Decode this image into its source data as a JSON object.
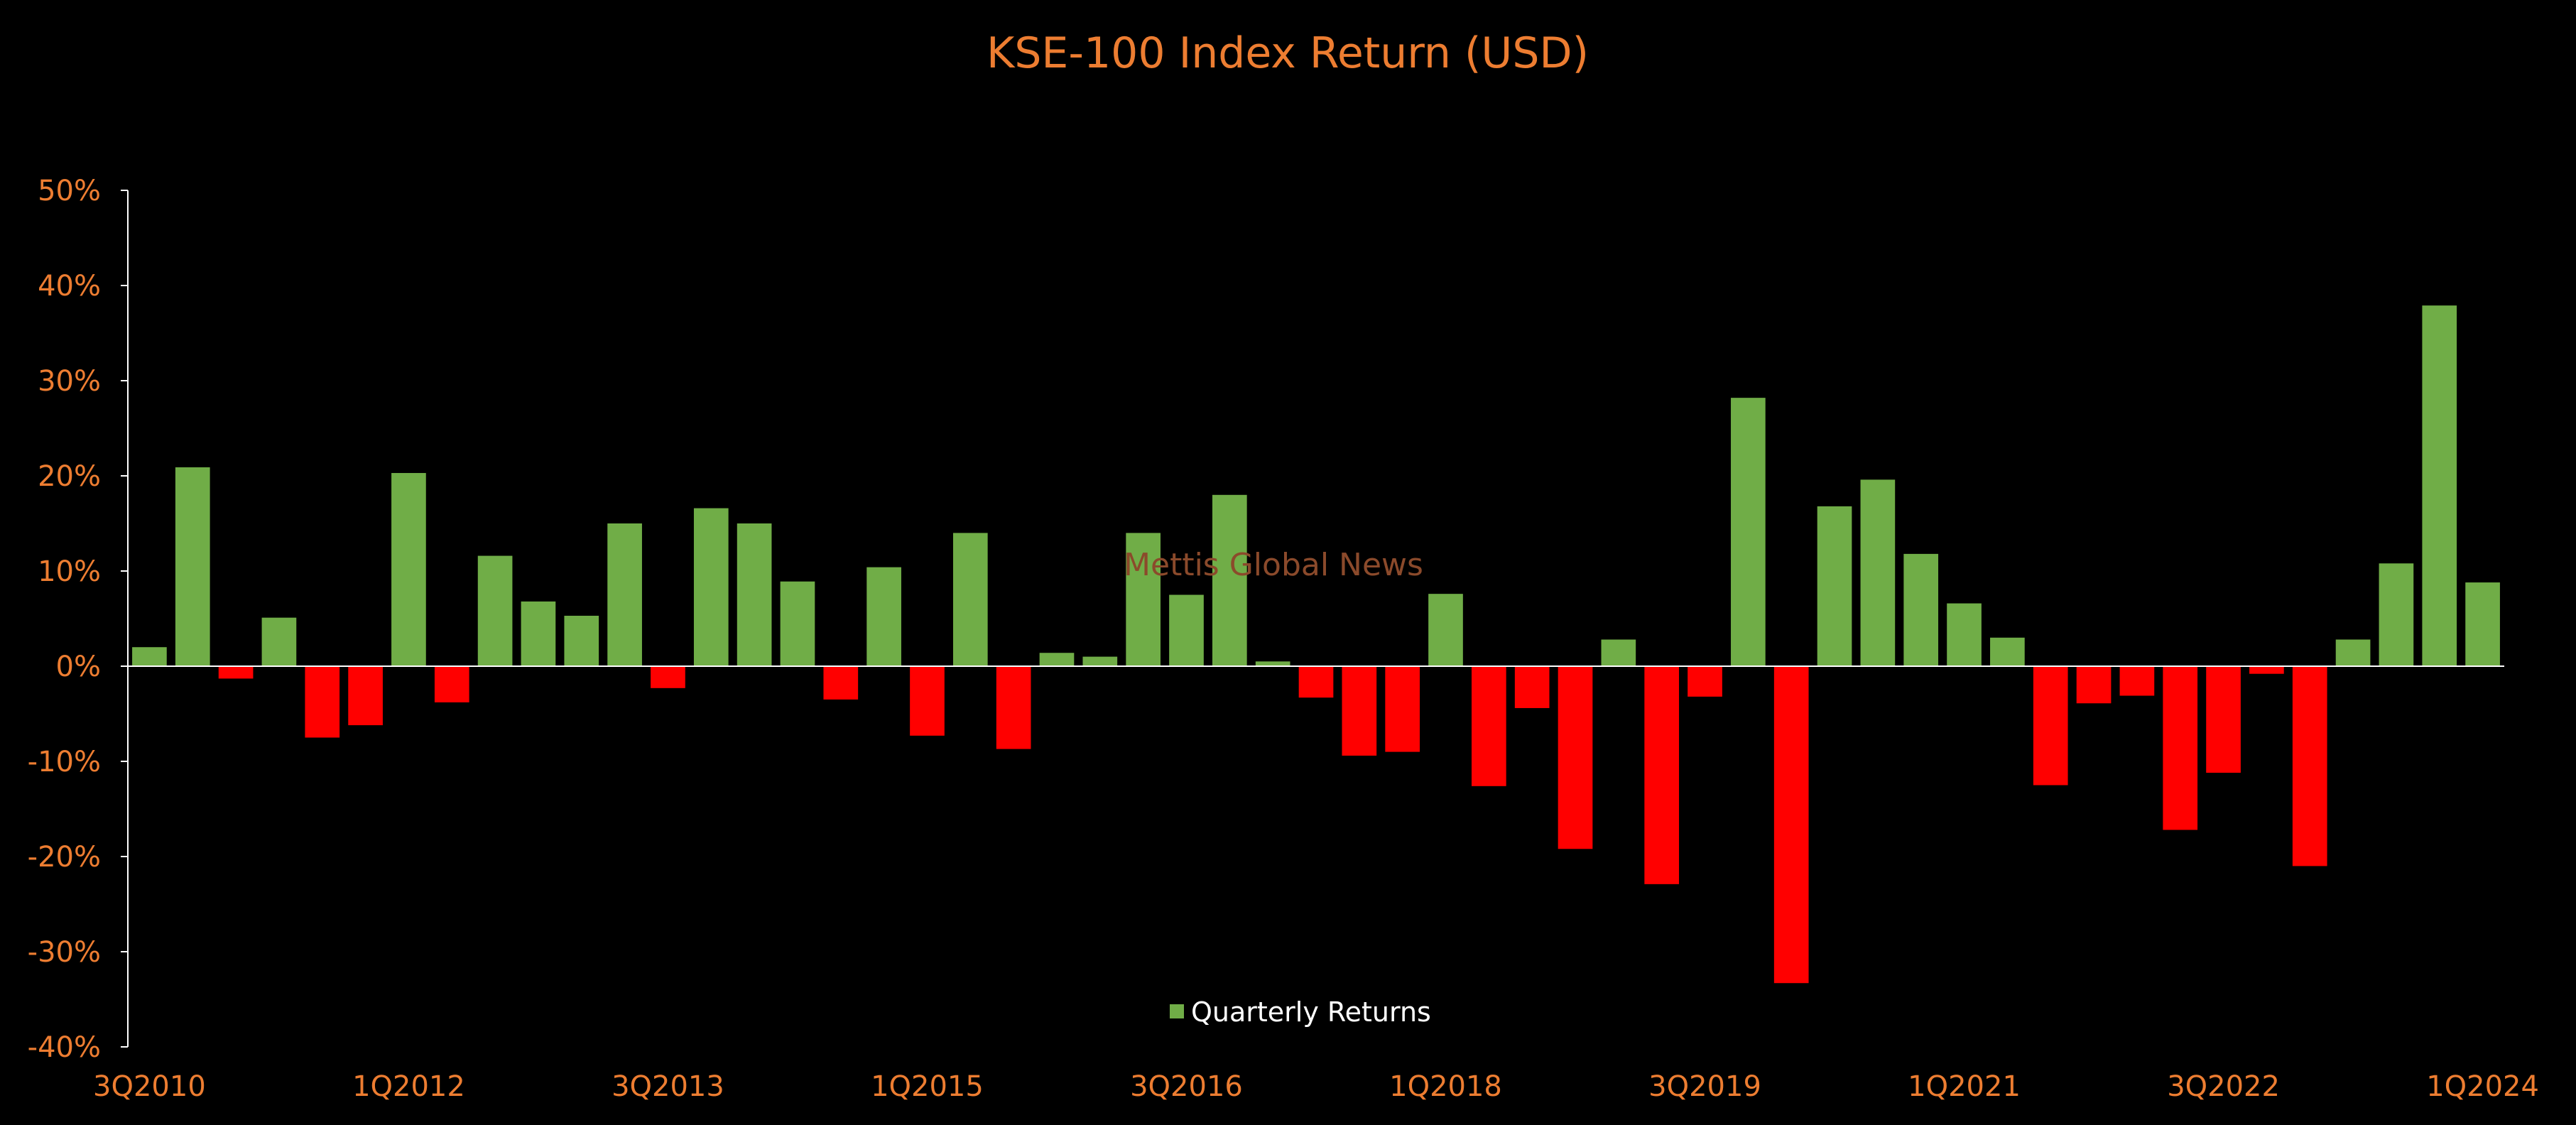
{
  "colors": {
    "background": "#000000",
    "positive": "#70AD47",
    "negative": "#FF0000",
    "text": "#ED7D31",
    "axis": "#FFFFFF",
    "legend_text": "#FFFFFF",
    "watermark": "#8B4A2B"
  },
  "watermark": "Mettis Global News",
  "chart_data": {
    "type": "bar",
    "title": "KSE-100 Index Return (USD)",
    "xlabel": "",
    "ylabel": "",
    "ylim": [
      -40,
      50
    ],
    "y_ticks": [
      50,
      40,
      30,
      20,
      10,
      0,
      -10,
      -20,
      -30,
      -40
    ],
    "y_tick_labels": [
      "50%",
      "40%",
      "30%",
      "20%",
      "10%",
      "0%",
      "-10%",
      "-20%",
      "-30%",
      "-40%"
    ],
    "x_tick_labels": [
      {
        "index": 0,
        "label": "3Q2010"
      },
      {
        "index": 6,
        "label": "1Q2012"
      },
      {
        "index": 12,
        "label": "3Q2013"
      },
      {
        "index": 18,
        "label": "1Q2015"
      },
      {
        "index": 24,
        "label": "3Q2016"
      },
      {
        "index": 30,
        "label": "1Q2018"
      },
      {
        "index": 36,
        "label": "3Q2019"
      },
      {
        "index": 42,
        "label": "1Q2021"
      },
      {
        "index": 48,
        "label": "3Q2022"
      },
      {
        "index": 54,
        "label": "1Q2024"
      }
    ],
    "grid": false,
    "legend_position": "bottom",
    "series": [
      {
        "name": "Quarterly Returns",
        "values": [
          2.0,
          20.9,
          -1.3,
          5.1,
          -7.5,
          -6.2,
          20.3,
          -3.8,
          11.6,
          6.8,
          5.3,
          15.0,
          -2.3,
          16.6,
          15.0,
          8.9,
          -3.5,
          10.4,
          -7.3,
          14.0,
          -8.7,
          1.4,
          1.0,
          14.0,
          7.5,
          18.0,
          0.5,
          -3.3,
          -9.4,
          -9.0,
          7.6,
          -12.6,
          -4.4,
          -19.2,
          2.8,
          -22.9,
          -3.2,
          28.2,
          -33.3,
          16.8,
          19.6,
          11.8,
          6.6,
          3.0,
          -12.5,
          -3.9,
          -3.1,
          -17.2,
          -11.2,
          -0.8,
          -21.0,
          2.8,
          10.8,
          37.9,
          8.8
        ]
      }
    ]
  }
}
